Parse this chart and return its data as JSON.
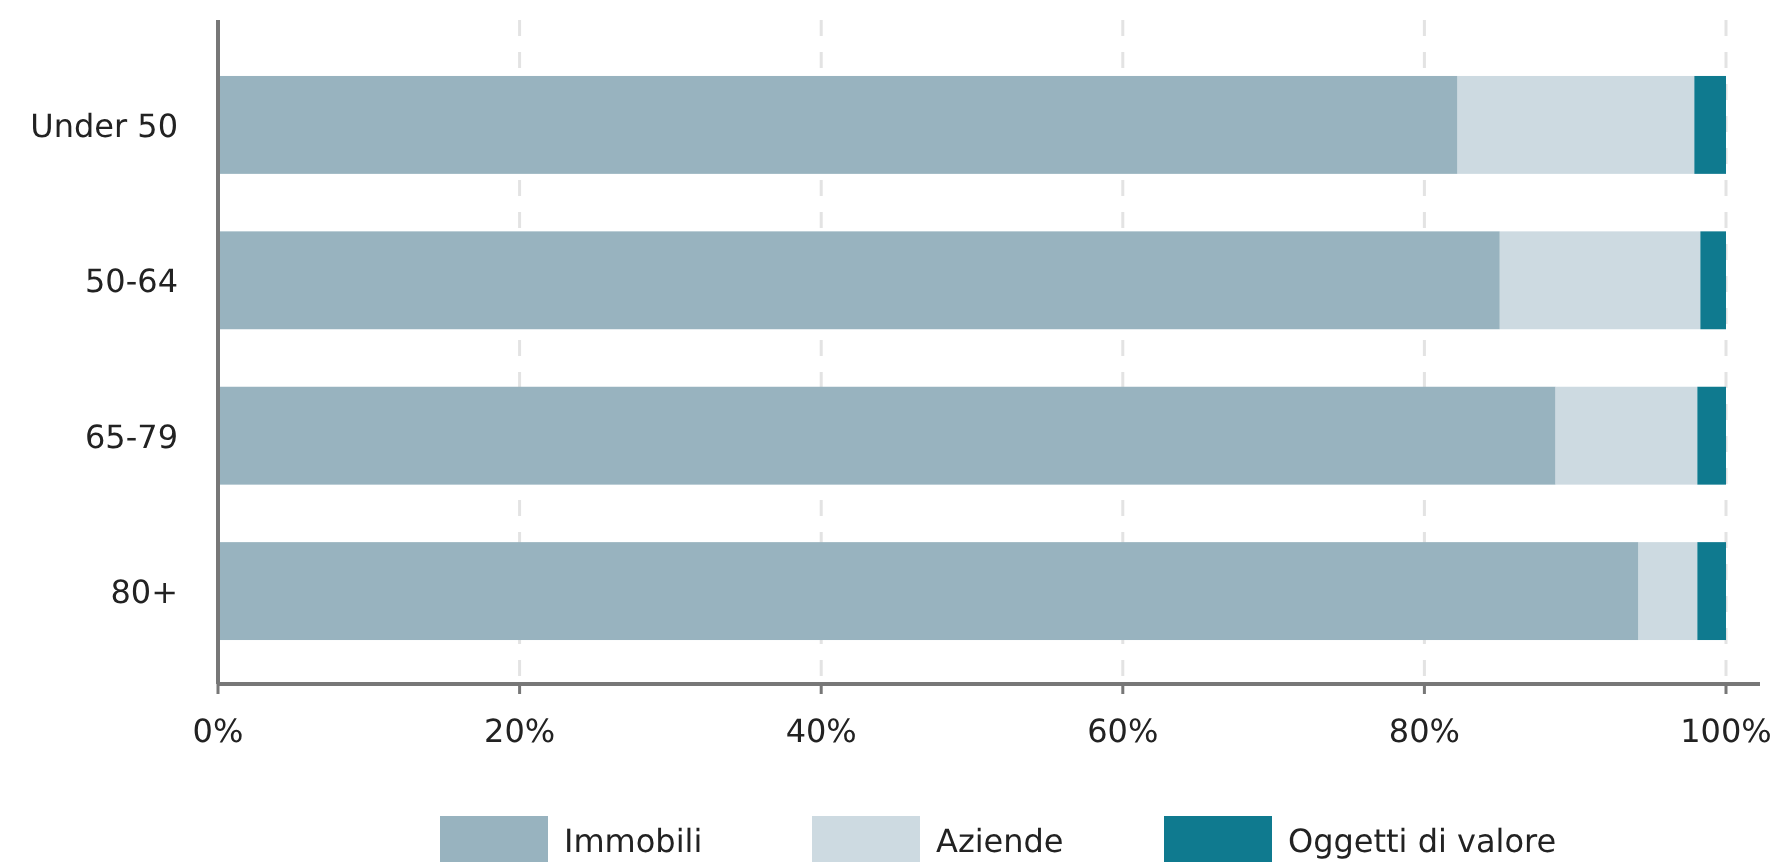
{
  "chart_data": {
    "type": "bar",
    "orientation": "horizontal",
    "stacked": true,
    "categories": [
      "Under 50",
      "50-64",
      "65-79",
      "80+"
    ],
    "series": [
      {
        "name": "Immobili",
        "color": "#98b3bf",
        "values": [
          82.2,
          85.0,
          88.7,
          94.2
        ]
      },
      {
        "name": "Aziende",
        "color": "#cddae1",
        "values": [
          15.7,
          13.3,
          9.4,
          3.9
        ]
      },
      {
        "name": "Oggetti di valore",
        "color": "#0f7a8f",
        "values": [
          2.1,
          1.7,
          1.9,
          1.9
        ]
      }
    ],
    "xlim": [
      0,
      100
    ],
    "xticks": [
      {
        "value": 0,
        "label": "0%"
      },
      {
        "value": 20,
        "label": "20%"
      },
      {
        "value": 40,
        "label": "40%"
      },
      {
        "value": 60,
        "label": "60%"
      },
      {
        "value": 80,
        "label": "80%"
      },
      {
        "value": 100,
        "label": "100%"
      }
    ],
    "grid": "x",
    "legend": "bottom"
  }
}
